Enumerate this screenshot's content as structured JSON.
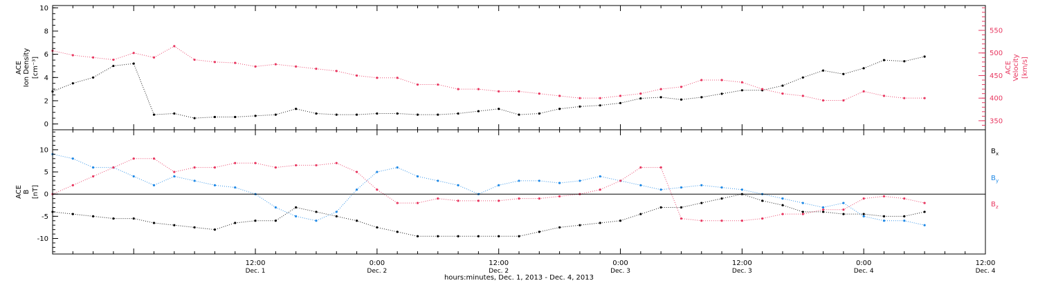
{
  "colors": {
    "axes": "#000000",
    "density": "#000000",
    "velocity": "#e8365f",
    "bx": "#000000",
    "by": "#1e88e5",
    "bz": "#e8365f"
  },
  "time_axis": {
    "range_hours": [
      -8,
      84
    ],
    "ticks": [
      {
        "hour": 12,
        "time": "12:00",
        "date": "Dec. 1"
      },
      {
        "hour": 24,
        "time": "0:00",
        "date": "Dec. 2"
      },
      {
        "hour": 36,
        "time": "12:00",
        "date": "Dec. 2"
      },
      {
        "hour": 48,
        "time": "0:00",
        "date": "Dec. 3"
      },
      {
        "hour": 60,
        "time": "12:00",
        "date": "Dec. 3"
      },
      {
        "hour": 72,
        "time": "0:00",
        "date": "Dec. 4"
      },
      {
        "hour": 84,
        "time": "12:00",
        "date": "Dec. 4"
      }
    ],
    "title": "hours:minutes, Dec.  1, 2013 - Dec.  4, 2013"
  },
  "panel_top": {
    "left_label": [
      "ACE",
      "Ion Density",
      "[cm⁻³]"
    ],
    "right_label": [
      "ACE",
      "Velocity",
      "[km/s]"
    ],
    "left_ylim": [
      -0.5,
      10.2
    ],
    "left_ticks": [
      "0",
      "2",
      "4",
      "6",
      "8",
      "10"
    ],
    "right_ylim": [
      330,
      605
    ],
    "right_ticks": [
      "350",
      "400",
      "450",
      "500",
      "550"
    ]
  },
  "panel_bottom": {
    "left_label": [
      "ACE",
      "B",
      "[nT]"
    ],
    "ylim": [
      -13.5,
      14.5
    ],
    "ticks": [
      "-10",
      "-5",
      "0",
      "5",
      "10"
    ],
    "legend": [
      "Bx",
      "By",
      "Bz"
    ]
  },
  "chart_data": {
    "type": "scatter",
    "x_unit": "hours since 0:00 Dec. 1, 2013",
    "series": [
      {
        "panel": "top",
        "axis": "left",
        "name": "Ion Density",
        "x": [
          -8,
          -6,
          -4,
          -2,
          0,
          2,
          4,
          6,
          8,
          10,
          12,
          14,
          16,
          18,
          20,
          22,
          24,
          26,
          28,
          30,
          32,
          34,
          36,
          38,
          40,
          42,
          44,
          46,
          48,
          50,
          52,
          54,
          56,
          58,
          60,
          62,
          64,
          66,
          68,
          70,
          72,
          74,
          76,
          78
        ],
        "y": [
          2.8,
          3.5,
          4.0,
          5.0,
          5.2,
          0.8,
          0.9,
          0.5,
          0.6,
          0.6,
          0.7,
          0.8,
          1.3,
          0.9,
          0.8,
          0.8,
          0.9,
          0.9,
          0.8,
          0.8,
          0.9,
          1.1,
          1.3,
          0.8,
          0.9,
          1.3,
          1.5,
          1.6,
          1.8,
          2.2,
          2.3,
          2.1,
          2.3,
          2.6,
          2.9,
          2.9,
          3.3,
          4.0,
          4.6,
          4.3,
          4.8,
          5.5,
          5.4,
          5.8
        ]
      },
      {
        "panel": "top",
        "axis": "right",
        "name": "Velocity",
        "x": [
          -8,
          -6,
          -4,
          -2,
          0,
          2,
          4,
          6,
          8,
          10,
          12,
          14,
          16,
          18,
          20,
          22,
          24,
          26,
          28,
          30,
          32,
          34,
          36,
          38,
          40,
          42,
          44,
          46,
          48,
          50,
          52,
          54,
          56,
          58,
          60,
          62,
          64,
          66,
          68,
          70,
          72,
          74,
          76,
          78
        ],
        "y": [
          505,
          495,
          490,
          485,
          500,
          490,
          515,
          485,
          480,
          478,
          470,
          475,
          470,
          465,
          460,
          450,
          445,
          445,
          430,
          430,
          420,
          420,
          415,
          415,
          410,
          405,
          400,
          400,
          405,
          410,
          420,
          425,
          440,
          440,
          435,
          420,
          410,
          405,
          395,
          395,
          415,
          405,
          400,
          400
        ]
      },
      {
        "panel": "bottom",
        "name": "Bx",
        "x": [
          -8,
          -6,
          -4,
          -2,
          0,
          2,
          4,
          6,
          8,
          10,
          12,
          14,
          16,
          18,
          20,
          22,
          24,
          26,
          28,
          30,
          32,
          34,
          36,
          38,
          40,
          42,
          44,
          46,
          48,
          50,
          52,
          54,
          56,
          58,
          60,
          62,
          64,
          66,
          68,
          70,
          72,
          74,
          76,
          78
        ],
        "y": [
          -4,
          -4.5,
          -5,
          -5.5,
          -5.5,
          -6.5,
          -7,
          -7.5,
          -8,
          -6.5,
          -6,
          -6,
          -3,
          -4,
          -5,
          -6,
          -7.5,
          -8.5,
          -9.5,
          -9.5,
          -9.5,
          -9.5,
          -9.5,
          -9.5,
          -8.5,
          -7.5,
          -7,
          -6.5,
          -6,
          -4.5,
          -3,
          -3,
          -2,
          -1,
          0,
          -1.5,
          -2.5,
          -4,
          -4,
          -4.5,
          -4.5,
          -5,
          -5,
          -4
        ]
      },
      {
        "panel": "bottom",
        "name": "By",
        "x": [
          -8,
          -6,
          -4,
          -2,
          0,
          2,
          4,
          6,
          8,
          10,
          12,
          14,
          16,
          18,
          20,
          22,
          24,
          26,
          28,
          30,
          32,
          34,
          36,
          38,
          40,
          42,
          44,
          46,
          48,
          50,
          52,
          54,
          56,
          58,
          60,
          62,
          64,
          66,
          68,
          70,
          72,
          74,
          76,
          78
        ],
        "y": [
          9,
          8,
          6,
          6,
          4,
          2,
          4,
          3,
          2,
          1.5,
          0,
          -3,
          -5,
          -6,
          -4,
          1,
          5,
          6,
          4,
          3,
          2,
          0,
          2,
          3,
          3,
          2.5,
          3,
          4,
          3,
          2,
          1,
          1.5,
          2,
          1.5,
          1,
          0,
          -1,
          -2,
          -3,
          -2,
          -5,
          -6,
          -6,
          -7
        ]
      },
      {
        "panel": "bottom",
        "name": "Bz",
        "x": [
          -8,
          -6,
          -4,
          -2,
          0,
          2,
          4,
          6,
          8,
          10,
          12,
          14,
          16,
          18,
          20,
          22,
          24,
          26,
          28,
          30,
          32,
          34,
          36,
          38,
          40,
          42,
          44,
          46,
          48,
          50,
          52,
          54,
          56,
          58,
          60,
          62,
          64,
          66,
          68,
          70,
          72,
          74,
          76,
          78
        ],
        "y": [
          0,
          2,
          4,
          6,
          8,
          8,
          5,
          6,
          6,
          7,
          7,
          6,
          6.5,
          6.5,
          7,
          5,
          1,
          -2,
          -2,
          -1,
          -1.5,
          -1.5,
          -1.5,
          -1,
          -1,
          -0.5,
          0,
          1,
          3,
          6,
          6,
          -5.5,
          -6,
          -6,
          -6,
          -5.5,
          -4.5,
          -4.5,
          -3.5,
          -3.5,
          -1,
          -0.5,
          -1,
          -2
        ]
      }
    ]
  }
}
